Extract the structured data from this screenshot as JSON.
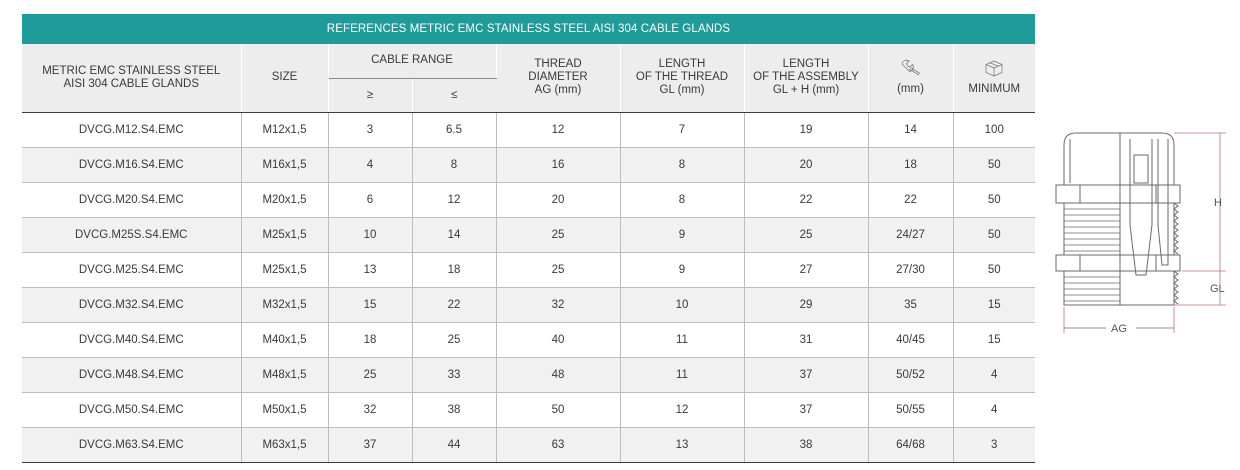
{
  "table": {
    "title": "REFERENCES METRIC EMC STAINLESS STEEL AISI 304 CABLE GLANDS",
    "headers": {
      "product_line1": "METRIC EMC STAINLESS STEEL",
      "product_line2": "AISI 304 CABLE GLANDS",
      "size": "SIZE",
      "cable_range": "CABLE RANGE",
      "min_symbol": "≥",
      "max_symbol": "≤",
      "thread_line1": "THREAD",
      "thread_line2": "DIAMETER",
      "thread_line3": "AG (mm)",
      "length_thread_line1": "LENGTH",
      "length_thread_line2": "OF THE THREAD",
      "length_thread_line3": "GL (mm)",
      "length_assembly_line1": "LENGTH",
      "length_assembly_line2": "OF THE ASSEMBLY",
      "length_assembly_line3": "GL + H (mm)",
      "wrench_unit": "(mm)",
      "minimum": "MINIMUM",
      "wrench_icon": "wrench-icon",
      "box_icon": "box-icon"
    },
    "rows": [
      {
        "ref": "DVCG.M12.S4.EMC",
        "size": "M12x1,5",
        "min": "3",
        "max": "6.5",
        "ag": "12",
        "gl": "7",
        "glh": "19",
        "wrench": "14",
        "minimum": "100"
      },
      {
        "ref": "DVCG.M16.S4.EMC",
        "size": "M16x1,5",
        "min": "4",
        "max": "8",
        "ag": "16",
        "gl": "8",
        "glh": "20",
        "wrench": "18",
        "minimum": "50"
      },
      {
        "ref": "DVCG.M20.S4.EMC",
        "size": "M20x1,5",
        "min": "6",
        "max": "12",
        "ag": "20",
        "gl": "8",
        "glh": "22",
        "wrench": "22",
        "minimum": "50"
      },
      {
        "ref": "DVCG.M25S.S4.EMC",
        "size": "M25x1,5",
        "min": "10",
        "max": "14",
        "ag": "25",
        "gl": "9",
        "glh": "25",
        "wrench": "24/27",
        "minimum": "50"
      },
      {
        "ref": "DVCG.M25.S4.EMC",
        "size": "M25x1,5",
        "min": "13",
        "max": "18",
        "ag": "25",
        "gl": "9",
        "glh": "27",
        "wrench": "27/30",
        "minimum": "50"
      },
      {
        "ref": "DVCG.M32.S4.EMC",
        "size": "M32x1,5",
        "min": "15",
        "max": "22",
        "ag": "32",
        "gl": "10",
        "glh": "29",
        "wrench": "35",
        "minimum": "15"
      },
      {
        "ref": "DVCG.M40.S4.EMC",
        "size": "M40x1,5",
        "min": "18",
        "max": "25",
        "ag": "40",
        "gl": "11",
        "glh": "31",
        "wrench": "40/45",
        "minimum": "15"
      },
      {
        "ref": "DVCG.M48.S4.EMC",
        "size": "M48x1,5",
        "min": "25",
        "max": "33",
        "ag": "48",
        "gl": "11",
        "glh": "37",
        "wrench": "50/52",
        "minimum": "4"
      },
      {
        "ref": "DVCG.M50.S4.EMC",
        "size": "M50x1,5",
        "min": "32",
        "max": "38",
        "ag": "50",
        "gl": "12",
        "glh": "37",
        "wrench": "50/55",
        "minimum": "4"
      },
      {
        "ref": "DVCG.M63.S4.EMC",
        "size": "M63x1,5",
        "min": "37",
        "max": "44",
        "ag": "63",
        "gl": "13",
        "glh": "38",
        "wrench": "64/68",
        "minimum": "3"
      }
    ]
  },
  "drawing": {
    "label_h": "H",
    "label_gl": "GL",
    "label_ag": "AG"
  }
}
